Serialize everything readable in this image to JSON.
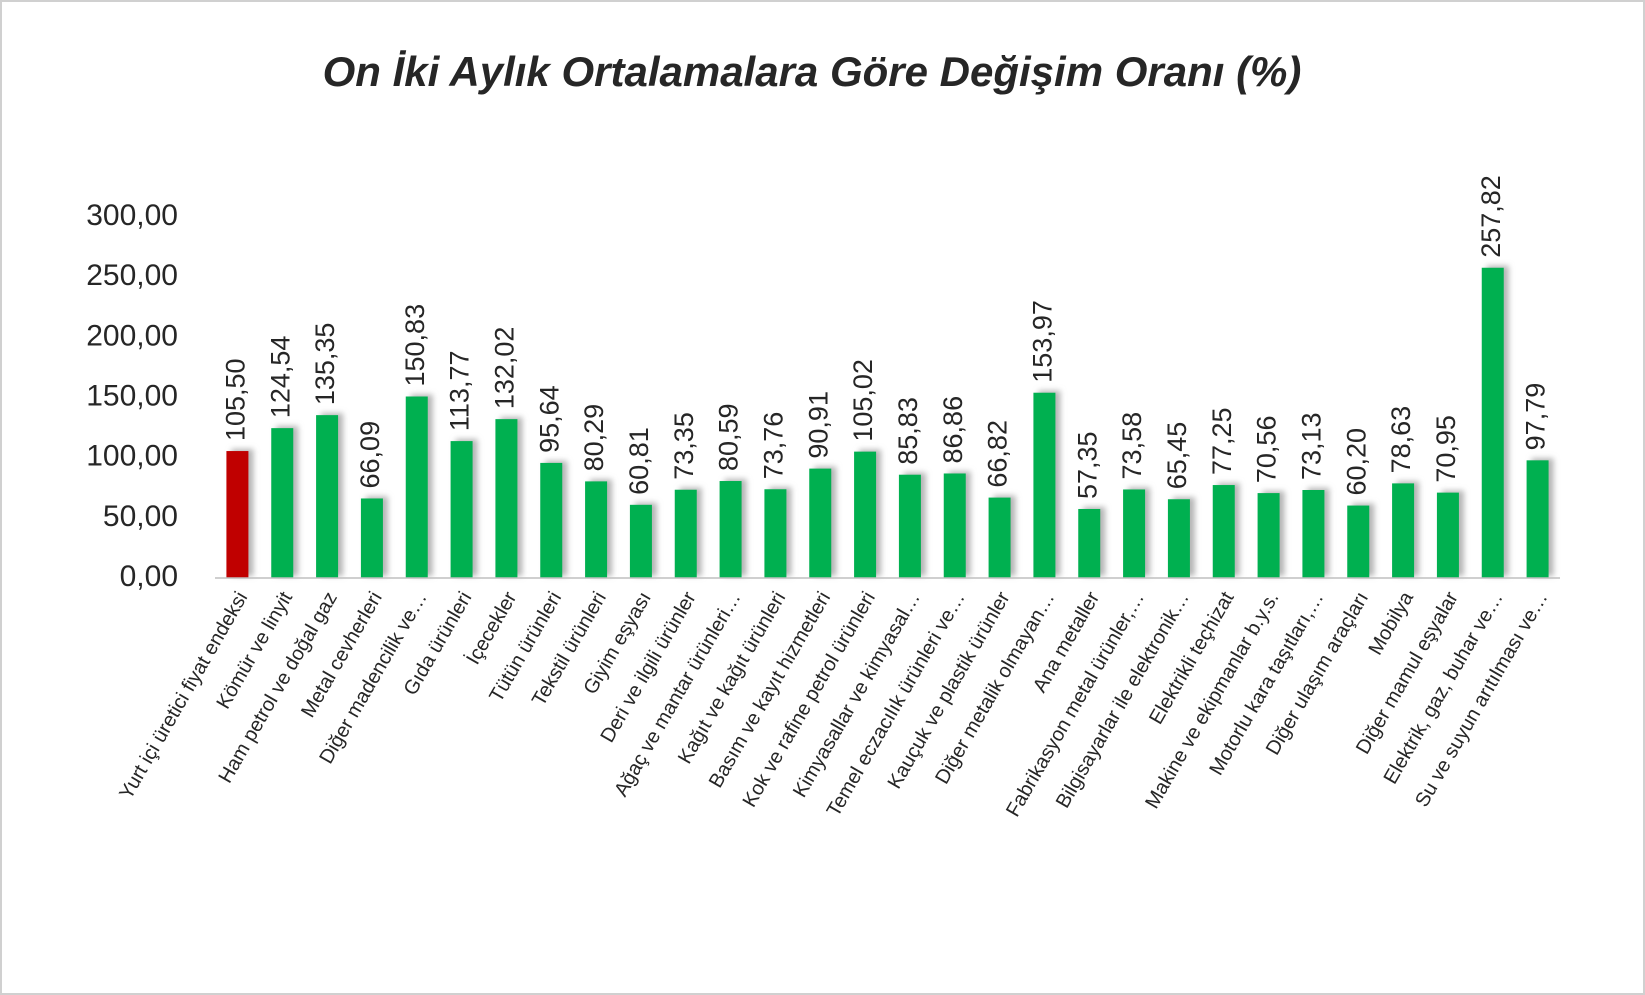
{
  "chart_data": {
    "type": "bar",
    "title": "On İki Aylık Ortalamalara Göre Değişim Oranı (%)",
    "categories": [
      "Yurt içi üretici fiyat endeksi",
      "Kömür ve linyit",
      "Ham petrol ve doğal gaz",
      "Metal cevherleri",
      "Diğer madencilik ve…",
      "Gıda ürünleri",
      "İçecekler",
      "Tütün ürünleri",
      "Tekstil ürünleri",
      "Giyim eşyası",
      "Deri ve ilgili ürünler",
      "Ağaç ve mantar ürünleri…",
      "Kağıt ve kağıt ürünleri",
      "Basım ve kayıt hizmetleri",
      "Kok ve rafine petrol ürünleri",
      "Kimyasallar ve kimyasal…",
      "Temel eczacılık ürünleri ve…",
      "Kauçuk ve plastik ürünler",
      "Diğer metalik olmayan…",
      "Ana metaller",
      "Fabrikasyon metal ürünler,…",
      "Bilgisayarlar ile elektronik…",
      "Elektrikli teçhizat",
      "Makine ve ekipmanlar b.y.s.",
      "Motorlu kara taşıtları,…",
      "Diğer ulaşım araçları",
      "Mobilya",
      "Diğer mamul eşyalar",
      "Elektrik, gaz, buhar ve…",
      "Su ve suyun arıtılması ve…"
    ],
    "values": [
      105.5,
      124.54,
      135.35,
      66.09,
      150.83,
      113.77,
      132.02,
      95.64,
      80.29,
      60.81,
      73.35,
      80.59,
      73.76,
      90.91,
      105.02,
      85.83,
      86.86,
      66.82,
      153.97,
      57.35,
      73.58,
      65.45,
      77.25,
      70.56,
      73.13,
      60.2,
      78.63,
      70.95,
      257.82,
      97.79
    ],
    "value_labels": [
      "105,50",
      "124,54",
      "135,35",
      "66,09",
      "150,83",
      "113,77",
      "132,02",
      "95,64",
      "80,29",
      "60,81",
      "73,35",
      "80,59",
      "73,76",
      "90,91",
      "105,02",
      "85,83",
      "86,86",
      "66,82",
      "153,97",
      "57,35",
      "73,58",
      "65,45",
      "77,25",
      "70,56",
      "73,13",
      "60,20",
      "78,63",
      "70,95",
      "257,82",
      "97,79"
    ],
    "colors": [
      "#c00000",
      "#00b050",
      "#00b050",
      "#00b050",
      "#00b050",
      "#00b050",
      "#00b050",
      "#00b050",
      "#00b050",
      "#00b050",
      "#00b050",
      "#00b050",
      "#00b050",
      "#00b050",
      "#00b050",
      "#00b050",
      "#00b050",
      "#00b050",
      "#00b050",
      "#00b050",
      "#00b050",
      "#00b050",
      "#00b050",
      "#00b050",
      "#00b050",
      "#00b050",
      "#00b050",
      "#00b050",
      "#00b050",
      "#00b050"
    ],
    "ylim": [
      0,
      300
    ],
    "yticks": [
      {
        "value": 0,
        "label": "0,00"
      },
      {
        "value": 50,
        "label": "50,00"
      },
      {
        "value": 100,
        "label": "100,00"
      },
      {
        "value": 150,
        "label": "150,00"
      },
      {
        "value": 200,
        "label": "200,00"
      },
      {
        "value": 250,
        "label": "250,00"
      },
      {
        "value": 300,
        "label": "300,00"
      }
    ],
    "grid": false
  }
}
